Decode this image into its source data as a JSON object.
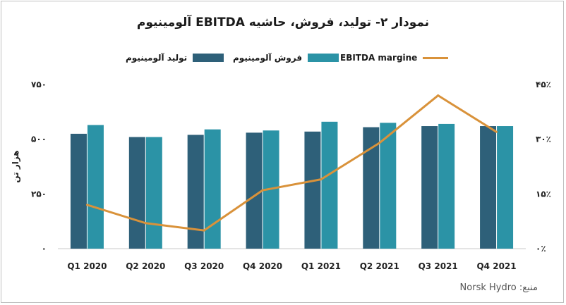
{
  "title": "نمودار ۲- تولید، فروش، حاشیه EBITDA آلومینیوم",
  "source": "منبع: Norsk Hydro",
  "legend": {
    "production": "تولید آلومینیوم",
    "sales": "فروش آلومینیوم",
    "margin": "EBITDA margine"
  },
  "chart_data": {
    "type": "bar",
    "categories": [
      "Q1 2020",
      "Q2 2020",
      "Q3 2020",
      "Q4 2020",
      "Q1 2021",
      "Q2 2021",
      "Q3 2021",
      "Q4 2021"
    ],
    "series": [
      {
        "name": "تولید آلومینیوم",
        "type": "bar",
        "axis": "left",
        "color": "#2e6079",
        "values": [
          525,
          510,
          520,
          530,
          535,
          555,
          560,
          560
        ]
      },
      {
        "name": "فروش آلومینیوم",
        "type": "bar",
        "axis": "left",
        "color": "#2b93a6",
        "values": [
          565,
          510,
          545,
          540,
          580,
          575,
          570,
          560
        ]
      },
      {
        "name": "EBITDA margine",
        "type": "line",
        "axis": "right",
        "color": "#d9923a",
        "values": [
          0.12,
          0.07,
          0.05,
          0.16,
          0.19,
          0.29,
          0.42,
          0.32
        ]
      }
    ],
    "ylabel": "هزار تن",
    "ylim": [
      0,
      750
    ],
    "y_ticks": [
      0,
      250,
      500,
      750
    ],
    "y_tick_labels": [
      "۰",
      "۲۵۰",
      "۵۰۰",
      "۷۵۰"
    ],
    "y2lim": [
      0,
      0.45
    ],
    "y2_ticks": [
      0,
      0.15,
      0.3,
      0.45
    ],
    "y2_tick_labels": [
      "۰٪",
      "۱۵٪",
      "۳۰٪",
      "۴۵٪"
    ],
    "grid": false,
    "legend_position": "top"
  }
}
